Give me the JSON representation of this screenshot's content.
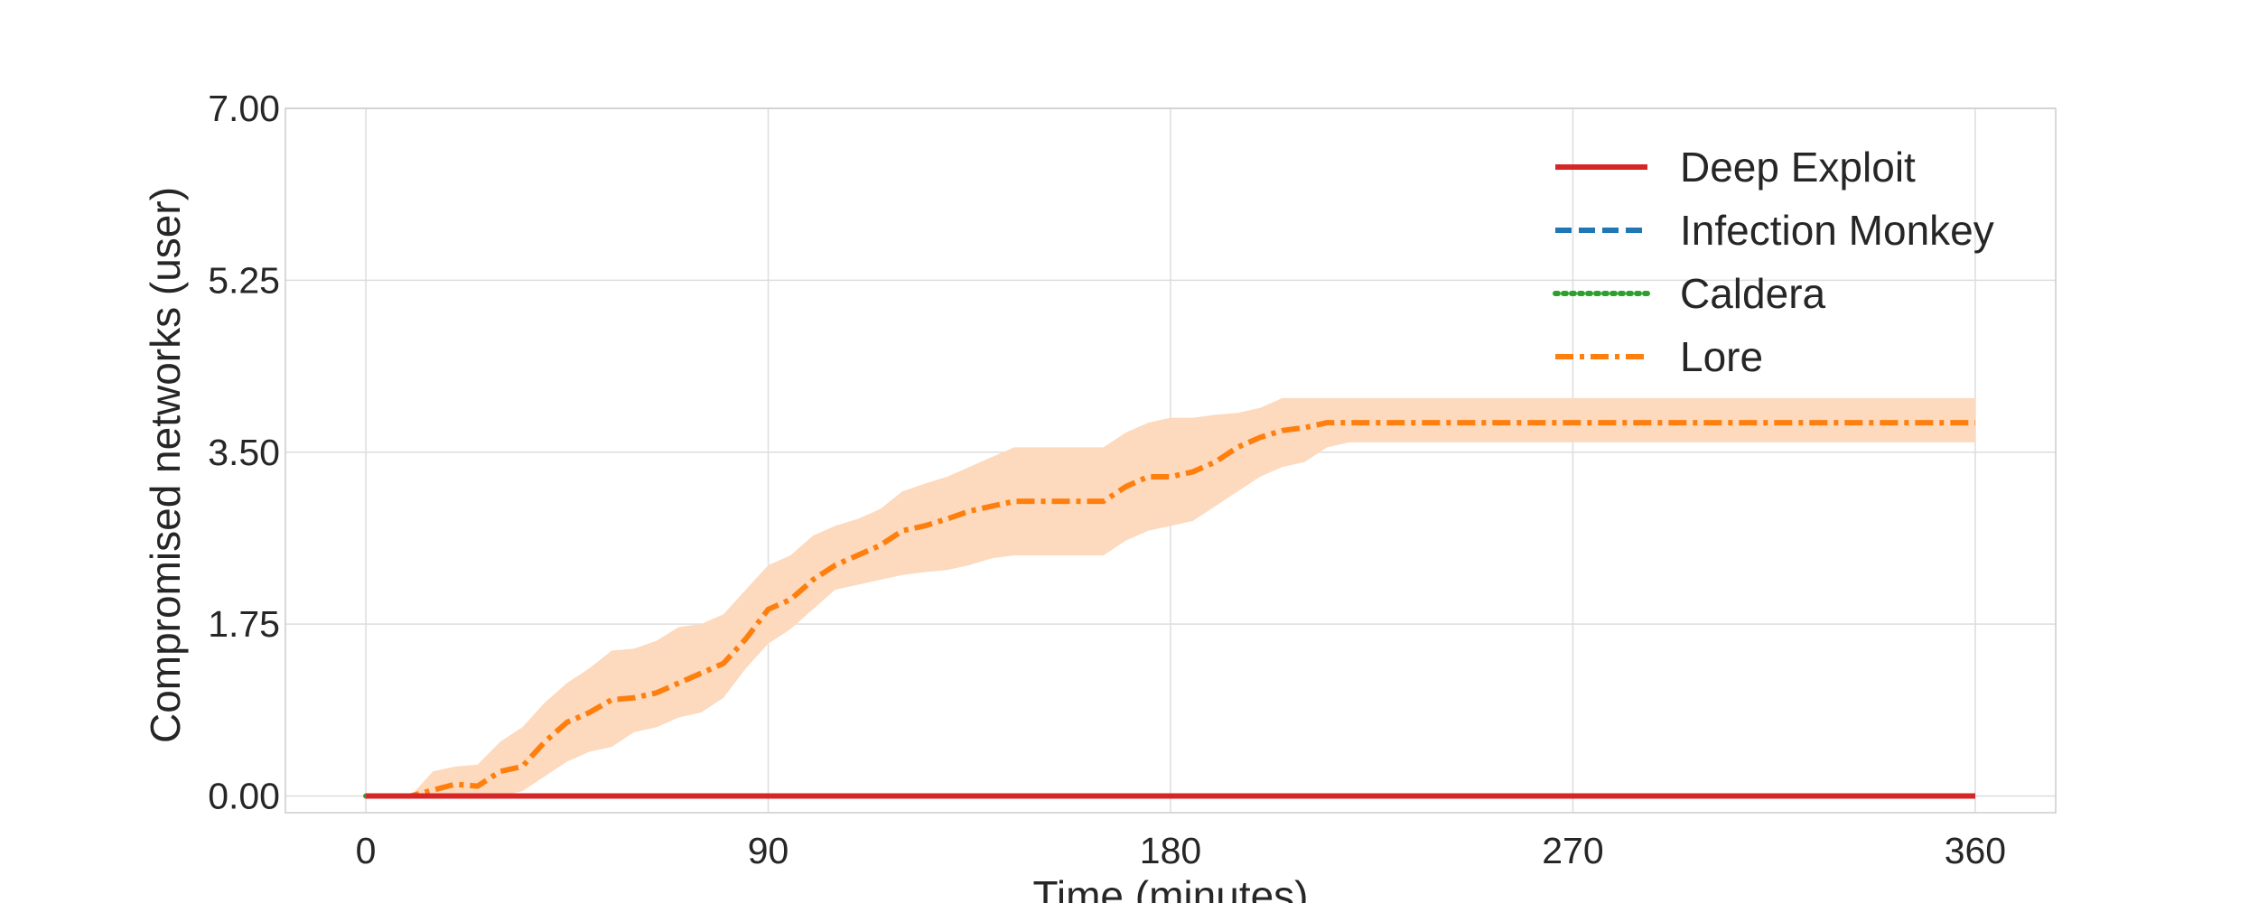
{
  "chart_data": {
    "type": "line",
    "xlabel": "Time (minutes)",
    "ylabel": "Compromised networks (user)",
    "xlim": [
      -18,
      378
    ],
    "ylim": [
      -0.17,
      7.0
    ],
    "xticks": [
      0,
      90,
      180,
      270,
      360
    ],
    "xtick_labels": [
      "0",
      "90",
      "180",
      "270",
      "360"
    ],
    "yticks": [
      0,
      1.75,
      3.5,
      5.25,
      7.0
    ],
    "ytick_labels": [
      "0.00",
      "1.75",
      "3.50",
      "5.25",
      "7.00"
    ],
    "grid": true,
    "legend_position": "top-right",
    "series": [
      {
        "name": "Deep Exploit",
        "color": "#d62728",
        "dash": "solid",
        "x": [
          0,
          360
        ],
        "y": [
          0,
          0
        ]
      },
      {
        "name": "Infection Monkey",
        "color": "#1f77b4",
        "dash": "dashed",
        "x": [
          0,
          360
        ],
        "y": [
          0,
          0
        ]
      },
      {
        "name": "Caldera",
        "color": "#2ca02c",
        "dash": "dotted",
        "x": [
          0,
          360
        ],
        "y": [
          0,
          0
        ]
      },
      {
        "name": "Lore",
        "color": "#ff7f0e",
        "dash": "dashdot",
        "band_color": "#fdd9bd",
        "x": [
          0,
          10,
          15,
          20,
          25,
          30,
          35,
          40,
          45,
          50,
          55,
          60,
          65,
          70,
          75,
          80,
          85,
          90,
          95,
          100,
          105,
          110,
          115,
          120,
          125,
          130,
          135,
          140,
          145,
          150,
          155,
          160,
          165,
          170,
          175,
          180,
          185,
          190,
          195,
          200,
          205,
          210,
          215,
          220,
          360
        ],
        "y": [
          0,
          0,
          0.06,
          0.12,
          0.1,
          0.25,
          0.3,
          0.55,
          0.75,
          0.85,
          0.98,
          1.0,
          1.05,
          1.15,
          1.25,
          1.35,
          1.6,
          1.9,
          2.0,
          2.2,
          2.35,
          2.45,
          2.55,
          2.7,
          2.75,
          2.82,
          2.9,
          2.95,
          3.0,
          3.0,
          3.0,
          3.0,
          3.0,
          3.15,
          3.25,
          3.25,
          3.3,
          3.4,
          3.55,
          3.65,
          3.72,
          3.75,
          3.8,
          3.8,
          3.8
        ],
        "lower": [
          0,
          0,
          -0.02,
          -0.02,
          -0.02,
          0.0,
          0.05,
          0.2,
          0.35,
          0.45,
          0.5,
          0.65,
          0.7,
          0.8,
          0.85,
          1.0,
          1.3,
          1.55,
          1.7,
          1.9,
          2.1,
          2.15,
          2.2,
          2.25,
          2.28,
          2.3,
          2.35,
          2.42,
          2.45,
          2.45,
          2.45,
          2.45,
          2.45,
          2.6,
          2.7,
          2.75,
          2.8,
          2.95,
          3.1,
          3.25,
          3.35,
          3.4,
          3.55,
          3.6,
          3.6
        ],
        "upper": [
          0,
          0,
          0.25,
          0.3,
          0.32,
          0.55,
          0.7,
          0.95,
          1.15,
          1.3,
          1.48,
          1.5,
          1.58,
          1.72,
          1.75,
          1.85,
          2.1,
          2.35,
          2.45,
          2.65,
          2.75,
          2.82,
          2.92,
          3.1,
          3.18,
          3.25,
          3.35,
          3.45,
          3.55,
          3.55,
          3.55,
          3.55,
          3.55,
          3.7,
          3.8,
          3.85,
          3.85,
          3.88,
          3.9,
          3.95,
          4.05,
          4.05,
          4.05,
          4.05,
          4.05
        ]
      }
    ]
  }
}
